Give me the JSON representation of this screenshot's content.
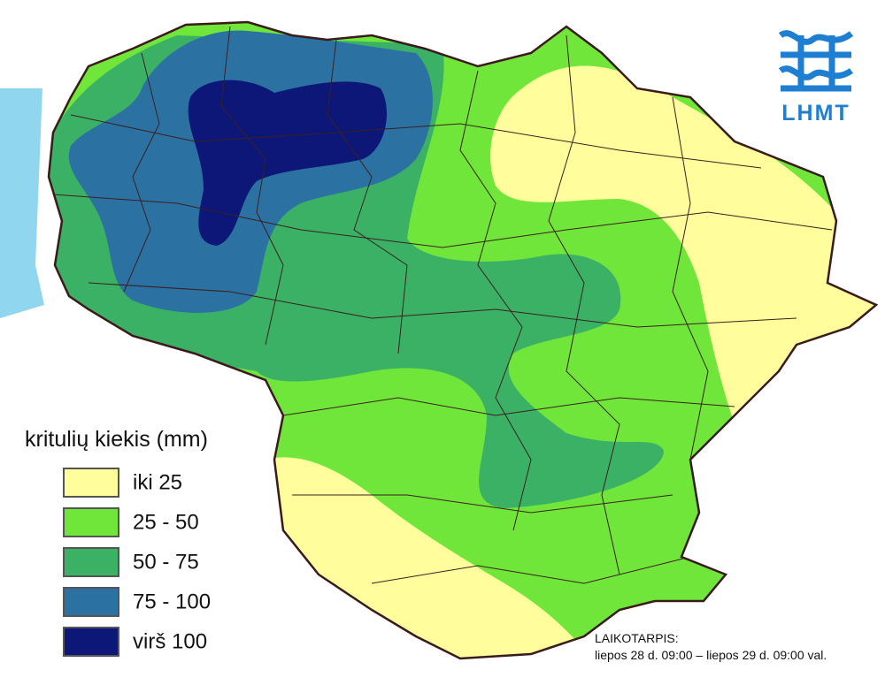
{
  "logo": {
    "text": "LHMT"
  },
  "legend": {
    "title": "kritulių kiekis (mm)",
    "items": [
      {
        "label": "iki 25",
        "color": "#fffd9c"
      },
      {
        "label": "25 - 50",
        "color": "#70e63a"
      },
      {
        "label": "50 - 75",
        "color": "#3bb166"
      },
      {
        "label": "75 - 100",
        "color": "#2b72a3"
      },
      {
        "label": "virš 100",
        "color": "#0d1777"
      }
    ]
  },
  "period": {
    "title": "LAIKOTARPIS:",
    "range": "liepos 28 d. 09:00 – liepos 29 d. 09:00 val."
  }
}
